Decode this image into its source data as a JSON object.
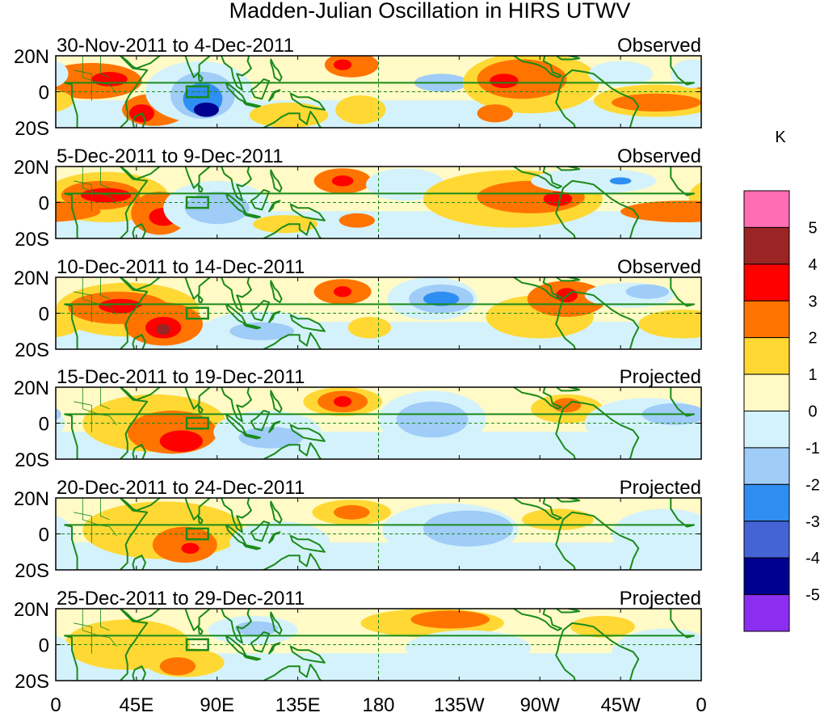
{
  "title": "Madden-Julian Oscillation in HIRS UTWV",
  "lat_labels": [
    "20N",
    "0",
    "20S"
  ],
  "lon_labels": [
    "0",
    "45E",
    "90E",
    "135E",
    "180",
    "135W",
    "90W",
    "45W",
    "0"
  ],
  "colorbar": {
    "unit": "K",
    "labels": [
      "5",
      "4",
      "3",
      "2",
      "1",
      "0",
      "-1",
      "-2",
      "-3",
      "-4",
      "-5"
    ],
    "colors": [
      "#ff6eb4",
      "#9b2424",
      "#ff0000",
      "#ff7400",
      "#ffd834",
      "#fffac6",
      "#d4f2fb",
      "#a0ccf8",
      "#2f8ef2",
      "#4464d6",
      "#000090",
      "#8c2ef0"
    ]
  },
  "colors": {
    "coast": "#1a8a1a",
    "background": "#ffffff"
  },
  "panels": [
    {
      "dates": "30-Nov-2011 to 4-Dec-2011",
      "status": "Observed",
      "blobs": [
        {
          "lon": 20,
          "lat": 6,
          "rx": 28,
          "ry": 10,
          "level": 2
        },
        {
          "lon": 30,
          "lat": 7,
          "rx": 10,
          "ry": 4,
          "level": 3
        },
        {
          "lon": 55,
          "lat": -10,
          "rx": 18,
          "ry": 9,
          "level": 2
        },
        {
          "lon": 48,
          "lat": -12,
          "rx": 7,
          "ry": 5,
          "level": 3
        },
        {
          "lon": 80,
          "lat": 0,
          "rx": 30,
          "ry": 17,
          "level": -1
        },
        {
          "lon": 82,
          "lat": -2,
          "rx": 18,
          "ry": 13,
          "level": -2
        },
        {
          "lon": 82,
          "lat": -4,
          "rx": 11,
          "ry": 9,
          "level": -3
        },
        {
          "lon": 84,
          "lat": -10,
          "rx": 7,
          "ry": 4,
          "level": -5
        },
        {
          "lon": 130,
          "lat": -13,
          "rx": 22,
          "ry": 7,
          "level": 1
        },
        {
          "lon": 165,
          "lat": 15,
          "rx": 15,
          "ry": 7,
          "level": 2
        },
        {
          "lon": 160,
          "lat": 15,
          "rx": 5,
          "ry": 3,
          "level": 3
        },
        {
          "lon": 170,
          "lat": -10,
          "rx": 14,
          "ry": 8,
          "level": 1
        },
        {
          "lon": -145,
          "lat": 5,
          "rx": 15,
          "ry": 5,
          "level": -2
        },
        {
          "lon": -95,
          "lat": 5,
          "rx": 38,
          "ry": 17,
          "level": 1
        },
        {
          "lon": -100,
          "lat": 7,
          "rx": 25,
          "ry": 11,
          "level": 2
        },
        {
          "lon": -110,
          "lat": 6,
          "rx": 8,
          "ry": 4,
          "level": 3
        },
        {
          "lon": -115,
          "lat": -12,
          "rx": 10,
          "ry": 5,
          "level": 2
        },
        {
          "lon": -25,
          "lat": -5,
          "rx": 35,
          "ry": 9,
          "level": 1
        },
        {
          "lon": -25,
          "lat": -6,
          "rx": 25,
          "ry": 5,
          "level": 2
        },
        {
          "lon": -45,
          "lat": 10,
          "rx": 18,
          "ry": 7,
          "level": -1
        },
        {
          "lon": -5,
          "lat": 10,
          "rx": 12,
          "ry": 8,
          "level": -1
        }
      ]
    },
    {
      "dates": "5-Dec-2011 to 9-Dec-2011",
      "status": "Observed",
      "blobs": [
        {
          "lon": 28,
          "lat": 3,
          "rx": 35,
          "ry": 14,
          "level": 1
        },
        {
          "lon": 25,
          "lat": 4,
          "rx": 22,
          "ry": 8,
          "level": 2
        },
        {
          "lon": 28,
          "lat": 4,
          "rx": 14,
          "ry": 4,
          "level": 3
        },
        {
          "lon": 58,
          "lat": -6,
          "rx": 16,
          "ry": 12,
          "level": 2
        },
        {
          "lon": 60,
          "lat": -8,
          "rx": 8,
          "ry": 5,
          "level": 3
        },
        {
          "lon": 90,
          "lat": -3,
          "rx": 30,
          "ry": 15,
          "level": -1
        },
        {
          "lon": 90,
          "lat": -3,
          "rx": 18,
          "ry": 9,
          "level": -2
        },
        {
          "lon": 128,
          "lat": -12,
          "rx": 18,
          "ry": 5,
          "level": 1
        },
        {
          "lon": 160,
          "lat": 12,
          "rx": 16,
          "ry": 7,
          "level": 2
        },
        {
          "lon": 160,
          "lat": 12,
          "rx": 6,
          "ry": 3,
          "level": 3
        },
        {
          "lon": 168,
          "lat": -10,
          "rx": 10,
          "ry": 4,
          "level": 2
        },
        {
          "lon": -165,
          "lat": 10,
          "rx": 22,
          "ry": 9,
          "level": -1
        },
        {
          "lon": -105,
          "lat": 2,
          "rx": 50,
          "ry": 16,
          "level": 1
        },
        {
          "lon": -95,
          "lat": 3,
          "rx": 30,
          "ry": 9,
          "level": 2
        },
        {
          "lon": -80,
          "lat": 2,
          "rx": 8,
          "ry": 4,
          "level": 3
        },
        {
          "lon": -10,
          "lat": -5,
          "rx": 35,
          "ry": 6,
          "level": 2
        },
        {
          "lon": -60,
          "lat": 12,
          "rx": 35,
          "ry": 7,
          "level": -1
        },
        {
          "lon": -45,
          "lat": 12,
          "rx": 6,
          "ry": 2,
          "level": -3
        }
      ]
    },
    {
      "dates": "10-Dec-2011 to 14-Dec-2011",
      "status": "Observed",
      "blobs": [
        {
          "lon": 40,
          "lat": 2,
          "rx": 40,
          "ry": 15,
          "level": 1
        },
        {
          "lon": 35,
          "lat": 3,
          "rx": 28,
          "ry": 9,
          "level": 2
        },
        {
          "lon": 36,
          "lat": 4,
          "rx": 12,
          "ry": 4,
          "level": 3
        },
        {
          "lon": 60,
          "lat": -6,
          "rx": 22,
          "ry": 12,
          "level": 2
        },
        {
          "lon": 60,
          "lat": -8,
          "rx": 10,
          "ry": 6,
          "level": 3
        },
        {
          "lon": 60,
          "lat": -9,
          "rx": 4,
          "ry": 3,
          "level": 4
        },
        {
          "lon": 115,
          "lat": -8,
          "rx": 32,
          "ry": 9,
          "level": -1
        },
        {
          "lon": 115,
          "lat": -10,
          "rx": 18,
          "ry": 5,
          "level": -2
        },
        {
          "lon": 160,
          "lat": 12,
          "rx": 16,
          "ry": 7,
          "level": 2
        },
        {
          "lon": 160,
          "lat": 12,
          "rx": 5,
          "ry": 3,
          "level": 3
        },
        {
          "lon": 175,
          "lat": -8,
          "rx": 12,
          "ry": 6,
          "level": 1
        },
        {
          "lon": -150,
          "lat": 8,
          "rx": 25,
          "ry": 12,
          "level": -1
        },
        {
          "lon": -145,
          "lat": 8,
          "rx": 18,
          "ry": 8,
          "level": -2
        },
        {
          "lon": -145,
          "lat": 8,
          "rx": 10,
          "ry": 4,
          "level": -3
        },
        {
          "lon": -90,
          "lat": -2,
          "rx": 30,
          "ry": 12,
          "level": 1
        },
        {
          "lon": -75,
          "lat": 8,
          "rx": 22,
          "ry": 10,
          "level": 2
        },
        {
          "lon": -75,
          "lat": 10,
          "rx": 6,
          "ry": 4,
          "level": 3
        },
        {
          "lon": -40,
          "lat": 10,
          "rx": 25,
          "ry": 7,
          "level": -1
        },
        {
          "lon": -30,
          "lat": 12,
          "rx": 12,
          "ry": 4,
          "level": -2
        },
        {
          "lon": -10,
          "lat": -6,
          "rx": 25,
          "ry": 8,
          "level": 1
        }
      ]
    },
    {
      "dates": "15-Dec-2011 to 19-Dec-2011",
      "status": "Projected",
      "blobs": [
        {
          "lon": 55,
          "lat": 0,
          "rx": 40,
          "ry": 16,
          "level": 1
        },
        {
          "lon": 65,
          "lat": -5,
          "rx": 25,
          "ry": 12,
          "level": 2
        },
        {
          "lon": 70,
          "lat": -10,
          "rx": 12,
          "ry": 6,
          "level": 3
        },
        {
          "lon": 118,
          "lat": -5,
          "rx": 30,
          "ry": 12,
          "level": -1
        },
        {
          "lon": 120,
          "lat": -8,
          "rx": 18,
          "ry": 6,
          "level": -2
        },
        {
          "lon": 160,
          "lat": 12,
          "rx": 22,
          "ry": 8,
          "level": 1
        },
        {
          "lon": 160,
          "lat": 12,
          "rx": 14,
          "ry": 6,
          "level": 2
        },
        {
          "lon": 160,
          "lat": 12,
          "rx": 5,
          "ry": 3,
          "level": 3
        },
        {
          "lon": -150,
          "lat": 2,
          "rx": 30,
          "ry": 16,
          "level": -1
        },
        {
          "lon": -150,
          "lat": 2,
          "rx": 20,
          "ry": 10,
          "level": -2
        },
        {
          "lon": -75,
          "lat": 8,
          "rx": 20,
          "ry": 8,
          "level": 1
        },
        {
          "lon": -75,
          "lat": 10,
          "rx": 8,
          "ry": 4,
          "level": 2
        },
        {
          "lon": -30,
          "lat": 0,
          "rx": 35,
          "ry": 14,
          "level": -1
        },
        {
          "lon": -15,
          "lat": 5,
          "rx": 18,
          "ry": 6,
          "level": -2
        }
      ]
    },
    {
      "dates": "20-Dec-2011 to 24-Dec-2011",
      "status": "Projected",
      "blobs": [
        {
          "lon": 60,
          "lat": 2,
          "rx": 45,
          "ry": 16,
          "level": 1
        },
        {
          "lon": 72,
          "lat": -6,
          "rx": 18,
          "ry": 10,
          "level": 2
        },
        {
          "lon": 75,
          "lat": -8,
          "rx": 5,
          "ry": 3,
          "level": 3
        },
        {
          "lon": 125,
          "lat": -5,
          "rx": 28,
          "ry": 12,
          "level": -1
        },
        {
          "lon": 165,
          "lat": 12,
          "rx": 22,
          "ry": 7,
          "level": 1
        },
        {
          "lon": 165,
          "lat": 12,
          "rx": 10,
          "ry": 4,
          "level": 2
        },
        {
          "lon": -140,
          "lat": 2,
          "rx": 38,
          "ry": 15,
          "level": -1
        },
        {
          "lon": -130,
          "lat": 3,
          "rx": 25,
          "ry": 10,
          "level": -2
        },
        {
          "lon": -80,
          "lat": 8,
          "rx": 20,
          "ry": 6,
          "level": 1
        },
        {
          "lon": -20,
          "lat": 0,
          "rx": 30,
          "ry": 14,
          "level": -1
        }
      ]
    },
    {
      "dates": "25-Dec-2011 to 29-Dec-2011",
      "status": "Projected",
      "blobs": [
        {
          "lon": 40,
          "lat": 0,
          "rx": 35,
          "ry": 14,
          "level": 1
        },
        {
          "lon": 72,
          "lat": -10,
          "rx": 22,
          "ry": 8,
          "level": 1
        },
        {
          "lon": 68,
          "lat": -12,
          "rx": 10,
          "ry": 5,
          "level": 2
        },
        {
          "lon": 110,
          "lat": 8,
          "rx": 25,
          "ry": 8,
          "level": -1
        },
        {
          "lon": 112,
          "lat": 9,
          "rx": 12,
          "ry": 4,
          "level": -2
        },
        {
          "lon": 140,
          "lat": -12,
          "rx": 25,
          "ry": 6,
          "level": -1
        },
        {
          "lon": -150,
          "lat": 12,
          "rx": 40,
          "ry": 8,
          "level": 1
        },
        {
          "lon": -140,
          "lat": 14,
          "rx": 22,
          "ry": 5,
          "level": 2
        },
        {
          "lon": -130,
          "lat": -2,
          "rx": 35,
          "ry": 10,
          "level": -1
        },
        {
          "lon": -55,
          "lat": 10,
          "rx": 18,
          "ry": 6,
          "level": 1
        },
        {
          "lon": -20,
          "lat": -5,
          "rx": 30,
          "ry": 14,
          "level": -1
        }
      ]
    }
  ]
}
